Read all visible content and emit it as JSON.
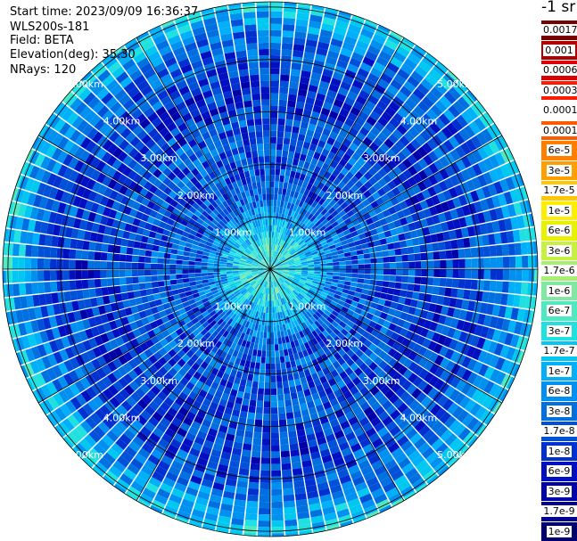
{
  "info": {
    "start_time": "Start time: 2023/09/09 16:36:37",
    "instrument": "WLS200s-181",
    "field": "Field: BETA",
    "elevation": "Elevation(deg): 35.30",
    "nrays": "NRays: 120"
  },
  "units": "-1 sr",
  "chart_data": {
    "type": "heatmap",
    "projection": "polar (PPI scan)",
    "field": "BETA",
    "elevation_deg": 35.3,
    "n_rays": 120,
    "range_rings_km": [
      1.0,
      2.0,
      3.0,
      4.0,
      5.0
    ],
    "range_ring_labels": [
      "1.00km",
      "2.00km",
      "3.00km",
      "4.00km",
      "5.00km"
    ],
    "max_range_km": 5.1,
    "typical_value_by_range_km": [
      {
        "range_km": 0.5,
        "value": 3e-07
      },
      {
        "range_km": 1.5,
        "value": 1.7e-08
      },
      {
        "range_km": 2.5,
        "value": 1.7e-08
      },
      {
        "range_km": 3.5,
        "value": 1e-08
      },
      {
        "range_km": 4.5,
        "value": 3e-08
      },
      {
        "range_km": 5.0,
        "value": 1.7e-07
      }
    ],
    "colorbar": {
      "scale": "log",
      "labels": [
        "0.0017",
        "0.001",
        "0.0006",
        "0.0003",
        "0.00017",
        "0.0001",
        "6e-5",
        "3e-5",
        "1.7e-5",
        "1e-5",
        "6e-6",
        "3e-6",
        "1.7e-6",
        "1e-6",
        "6e-7",
        "3e-7",
        "1.7e-7",
        "1e-7",
        "6e-8",
        "3e-8",
        "1.7e-8",
        "1e-8",
        "6e-9",
        "3e-9",
        "1.7e-9",
        "1e-9"
      ],
      "colors": [
        "#7a0000",
        "#b00000",
        "#d80000",
        "#ff1a00",
        "#ffffff",
        "#ff5a00",
        "#ff8000",
        "#ffa000",
        "#ffc800",
        "#ffee00",
        "#e8f200",
        "#c8f040",
        "#a8ee70",
        "#80e8a0",
        "#50e8c0",
        "#20e0e0",
        "#00c8f0",
        "#00b0f8",
        "#0090f0",
        "#0070e0",
        "#0050d8",
        "#0030d0",
        "#0010c0",
        "#0000a8",
        "#000090",
        "#000070"
      ]
    },
    "grid": true
  }
}
